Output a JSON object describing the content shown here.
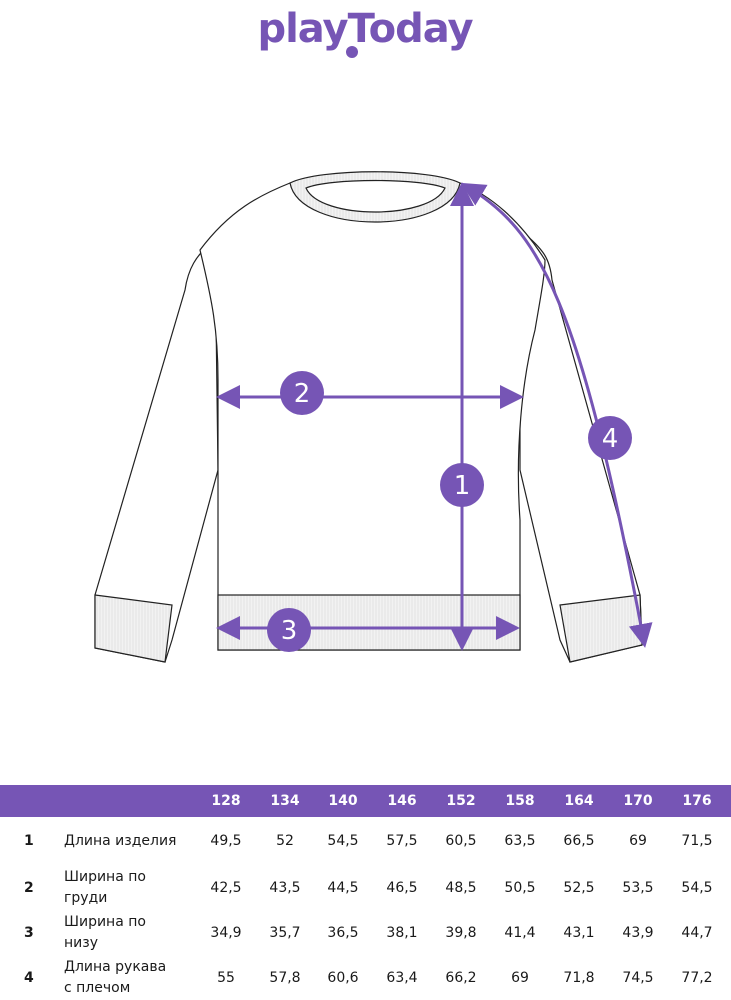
{
  "brand": {
    "logo_text": "playToday",
    "color": "#7655b5"
  },
  "diagram": {
    "markers": [
      "1",
      "2",
      "3",
      "4"
    ]
  },
  "table": {
    "sizes": [
      "128",
      "134",
      "140",
      "146",
      "152",
      "158",
      "164",
      "170",
      "176"
    ],
    "rows": [
      {
        "num": "1",
        "label": "Длина изделия",
        "values": [
          "49,5",
          "52",
          "54,5",
          "57,5",
          "60,5",
          "63,5",
          "66,5",
          "69",
          "71,5"
        ]
      },
      {
        "num": "2",
        "label": "Ширина по груди",
        "values": [
          "42,5",
          "43,5",
          "44,5",
          "46,5",
          "48,5",
          "50,5",
          "52,5",
          "53,5",
          "54,5"
        ]
      },
      {
        "num": "3",
        "label": "Ширина по низу",
        "values": [
          "34,9",
          "35,7",
          "36,5",
          "38,1",
          "39,8",
          "41,4",
          "43,1",
          "43,9",
          "44,7"
        ]
      },
      {
        "num": "4",
        "label": "Длина рукава с плечом",
        "values": [
          "55",
          "57,8",
          "60,6",
          "63,4",
          "66,2",
          "69",
          "71,8",
          "74,5",
          "77,2"
        ]
      }
    ]
  }
}
